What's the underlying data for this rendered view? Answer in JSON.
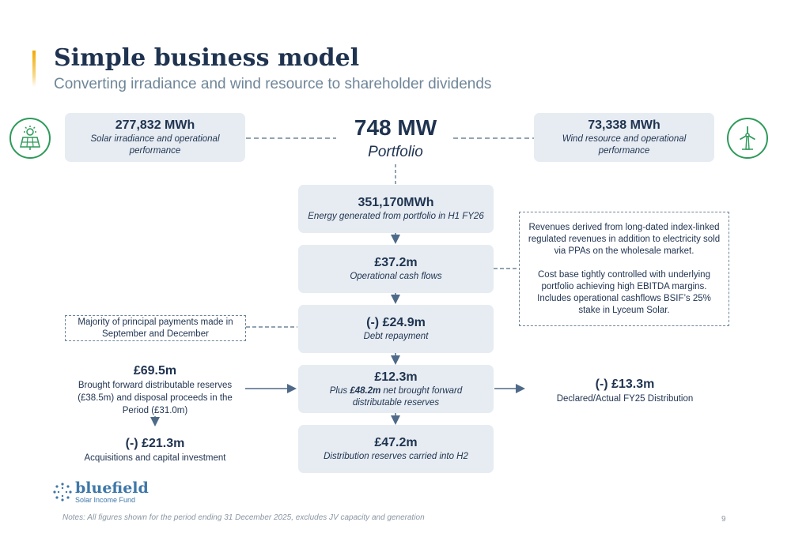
{
  "header": {
    "title": "Simple business model",
    "subtitle": "Converting irradiance and wind resource to shareholder dividends"
  },
  "icons": {
    "solar": "solar-panel-icon",
    "wind": "wind-turbine-icon",
    "logo": "bluefield-logo-icon"
  },
  "colors": {
    "navy": "#1f3350",
    "box": "#e6ecf2",
    "green": "#2e9a5a",
    "accent": "#f2a900"
  },
  "hub": {
    "value": "748 MW",
    "label": "Portfolio"
  },
  "solar": {
    "value": "277,832 MWh",
    "desc": "Solar irradiance and operational performance"
  },
  "wind": {
    "value": "73,338 MWh",
    "desc": "Wind resource and operational performance"
  },
  "flow": [
    {
      "value": "351,170MWh",
      "desc": "Energy generated from portfolio in H1 FY26"
    },
    {
      "value": "£37.2m",
      "desc": "Operational cash flows"
    },
    {
      "value": "(-) £24.9m",
      "desc": "Debt repayment"
    },
    {
      "value": "£12.3m",
      "desc_pre": "Plus ",
      "desc_bold": "£48.2m",
      "desc_post": " net brought forward distributable reserves"
    },
    {
      "value": "£47.2m",
      "desc": "Distribution reserves carried into H2"
    }
  ],
  "revenue_note": {
    "para1": "Revenues derived from long-dated index-linked regulated revenues in addition to electricity sold via PPAs on the wholesale market.",
    "para2": "Cost base tightly controlled with underlying portfolio achieving high EBITDA margins. Includes operational cashflows BSIF’s 25% stake in Lyceum Solar."
  },
  "principal_note": "Majority of principal payments made in September and December",
  "brought_forward": {
    "value": "£69.5m",
    "desc": "Brought forward distributable reserves (£38.5m) and disposal proceeds in the Period (£31.0m)"
  },
  "acquisitions": {
    "value": "(-) £21.3m",
    "desc": "Acquisitions and capital investment"
  },
  "distribution": {
    "value": "(-) £13.3m",
    "desc": "Declared/Actual FY25 Distribution"
  },
  "logo": {
    "word": "bluefield",
    "sub": "Solar Income Fund"
  },
  "footer": {
    "notes": "Notes: All figures shown for the period ending 31 December 2025, excludes JV capacity and generation",
    "page": "9"
  }
}
